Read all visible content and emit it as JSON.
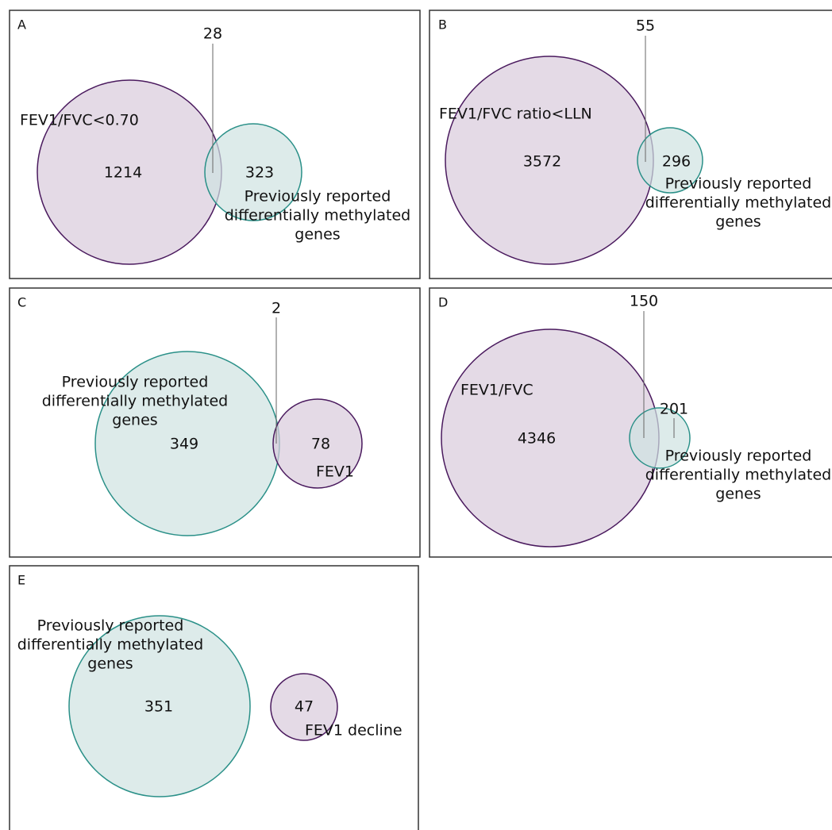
{
  "panels": [
    {
      "letter": "A",
      "trait_label": "FEV1/FVC<0.70",
      "trait_only": 1214,
      "overlap": 28,
      "previous_only": 323,
      "previous_label": [
        "Previously reported",
        "differentially methylated",
        "genes"
      ]
    },
    {
      "letter": "B",
      "trait_label": "FEV1/FVC ratio<LLN",
      "trait_only": 3572,
      "overlap": 55,
      "previous_only": 296,
      "previous_label": [
        "Previously reported",
        "differentially methylated",
        "genes"
      ]
    },
    {
      "letter": "C",
      "trait_label": "FEV1",
      "trait_only": 78,
      "overlap": 2,
      "previous_only": 349,
      "previous_label": [
        "Previously reported",
        "differentially methylated",
        "genes"
      ]
    },
    {
      "letter": "D",
      "trait_label": "FEV1/FVC",
      "trait_only": 4346,
      "overlap": 150,
      "previous_only": 201,
      "previous_label": [
        "Previously reported",
        "differentially methylated",
        "genes"
      ]
    },
    {
      "letter": "E",
      "trait_label": "FEV1 decline",
      "trait_only": 47,
      "previous_only": 351,
      "previous_label": [
        "Previously reported",
        "differentially methylated",
        "genes"
      ]
    }
  ]
}
